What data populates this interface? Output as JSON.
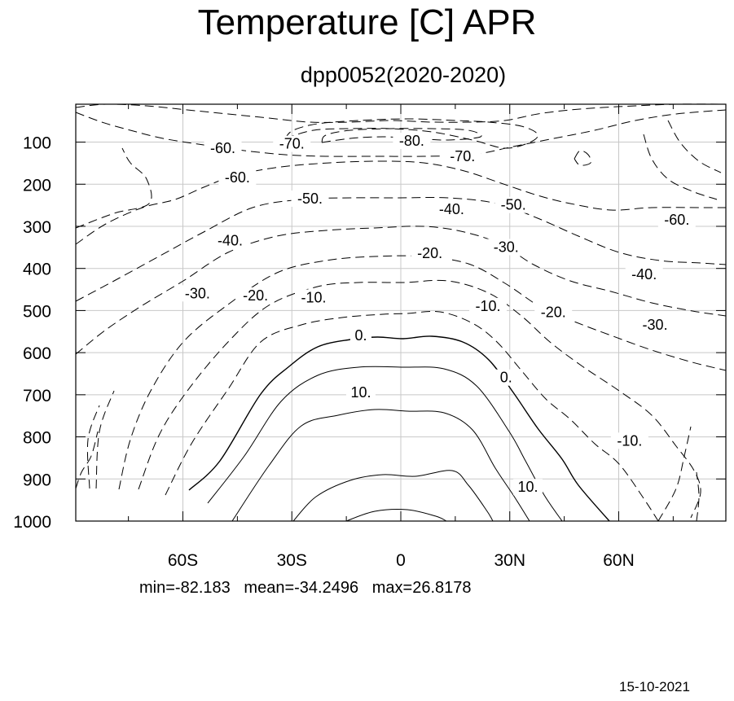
{
  "chart_data": {
    "type": "contour",
    "title": "Temperature [C] APR",
    "subtitle": "dpp0052(2020-2020)",
    "x_ticks": [
      "60S",
      "30S",
      "0",
      "30N",
      "60N"
    ],
    "x_tick_values": [
      -60,
      -30,
      0,
      30,
      60
    ],
    "y_ticks": [
      "100",
      "200",
      "300",
      "400",
      "500",
      "600",
      "700",
      "800",
      "900",
      "1000"
    ],
    "y_tick_values": [
      100,
      200,
      300,
      400,
      500,
      600,
      700,
      800,
      900,
      1000
    ],
    "xlim": [
      -89.5,
      89.5
    ],
    "ylim": [
      1000,
      10
    ],
    "grid": true,
    "contour_interval": 10,
    "contour_labels": [
      {
        "text": "-60.",
        "lat": -49,
        "p": 120
      },
      {
        "text": "-70.",
        "lat": -30,
        "p": 110
      },
      {
        "text": "-80.",
        "lat": 3,
        "p": 103
      },
      {
        "text": "-70.",
        "lat": 17,
        "p": 140
      },
      {
        "text": "-60.",
        "lat": -45,
        "p": 190
      },
      {
        "text": "-50.",
        "lat": -25,
        "p": 240
      },
      {
        "text": "-40.",
        "lat": 14,
        "p": 265
      },
      {
        "text": "-50.",
        "lat": 31,
        "p": 255
      },
      {
        "text": "-60.",
        "lat": 76,
        "p": 290
      },
      {
        "text": "-40.",
        "lat": -47,
        "p": 340
      },
      {
        "text": "-20.",
        "lat": 8,
        "p": 370
      },
      {
        "text": "-30.",
        "lat": 29,
        "p": 355
      },
      {
        "text": "-40.",
        "lat": 67,
        "p": 420
      },
      {
        "text": "-30.",
        "lat": -56,
        "p": 465
      },
      {
        "text": "-20.",
        "lat": -40,
        "p": 470
      },
      {
        "text": "-10.",
        "lat": -24,
        "p": 475
      },
      {
        "text": "-10.",
        "lat": 24,
        "p": 495
      },
      {
        "text": "-20.",
        "lat": 42,
        "p": 510
      },
      {
        "text": "-30.",
        "lat": 70,
        "p": 540
      },
      {
        "text": "0.",
        "lat": -11,
        "p": 565
      },
      {
        "text": "0.",
        "lat": 29,
        "p": 665
      },
      {
        "text": "10.",
        "lat": -11,
        "p": 700
      },
      {
        "text": "-10.",
        "lat": 63,
        "p": 815
      },
      {
        "text": "10.",
        "lat": 35,
        "p": 925
      }
    ],
    "stats": {
      "min": -82.183,
      "mean": -34.2496,
      "max": 26.8178
    }
  },
  "stats_text": "min=-82.183   mean=-34.2496   max=26.8178",
  "date": "15-10-2021"
}
